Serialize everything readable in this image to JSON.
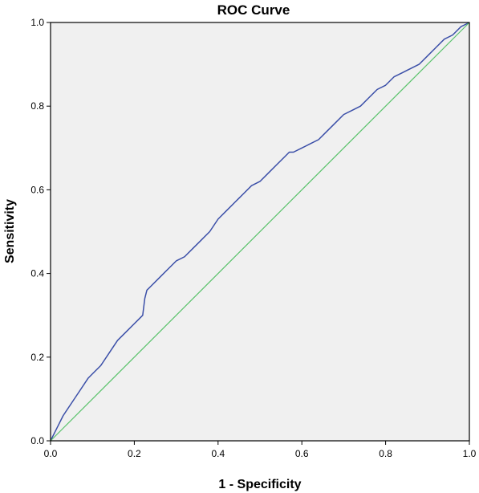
{
  "chart_data": {
    "type": "line",
    "title": "ROC Curve",
    "xlabel": "1 - Specificity",
    "ylabel": "Sensitivity",
    "xlim": [
      0.0,
      1.0
    ],
    "ylim": [
      0.0,
      1.0
    ],
    "xticks": [
      "0.0",
      "0.2",
      "0.4",
      "0.6",
      "0.8",
      "1.0"
    ],
    "yticks": [
      "0.0",
      "0.2",
      "0.4",
      "0.6",
      "0.8",
      "1.0"
    ],
    "grid": false,
    "legend": "none",
    "colors": {
      "background": "#f0f0f0",
      "roc": "#3b4fa8",
      "reference": "#58c26a",
      "frame": "#000000"
    },
    "series": [
      {
        "x": [
          0.0,
          0.01,
          0.02,
          0.03,
          0.05,
          0.07,
          0.09,
          0.1,
          0.12,
          0.14,
          0.16,
          0.18,
          0.2,
          0.21,
          0.22,
          0.225,
          0.23,
          0.24,
          0.26,
          0.28,
          0.3,
          0.32,
          0.34,
          0.36,
          0.38,
          0.4,
          0.42,
          0.44,
          0.45,
          0.46,
          0.48,
          0.5,
          0.52,
          0.54,
          0.56,
          0.57,
          0.58,
          0.6,
          0.62,
          0.64,
          0.66,
          0.68,
          0.7,
          0.72,
          0.74,
          0.76,
          0.78,
          0.8,
          0.82,
          0.84,
          0.86,
          0.88,
          0.9,
          0.92,
          0.94,
          0.96,
          0.98,
          1.0
        ],
        "y": [
          0.0,
          0.02,
          0.04,
          0.06,
          0.09,
          0.12,
          0.15,
          0.16,
          0.18,
          0.21,
          0.24,
          0.26,
          0.28,
          0.29,
          0.3,
          0.34,
          0.36,
          0.37,
          0.39,
          0.41,
          0.43,
          0.44,
          0.46,
          0.48,
          0.5,
          0.53,
          0.55,
          0.57,
          0.58,
          0.59,
          0.61,
          0.62,
          0.64,
          0.66,
          0.68,
          0.69,
          0.69,
          0.7,
          0.71,
          0.72,
          0.74,
          0.76,
          0.78,
          0.79,
          0.8,
          0.82,
          0.84,
          0.85,
          0.87,
          0.88,
          0.89,
          0.9,
          0.92,
          0.94,
          0.96,
          0.97,
          0.99,
          1.0
        ]
      },
      {
        "x": [
          0.0,
          1.0
        ],
        "y": [
          0.0,
          1.0
        ]
      }
    ]
  }
}
